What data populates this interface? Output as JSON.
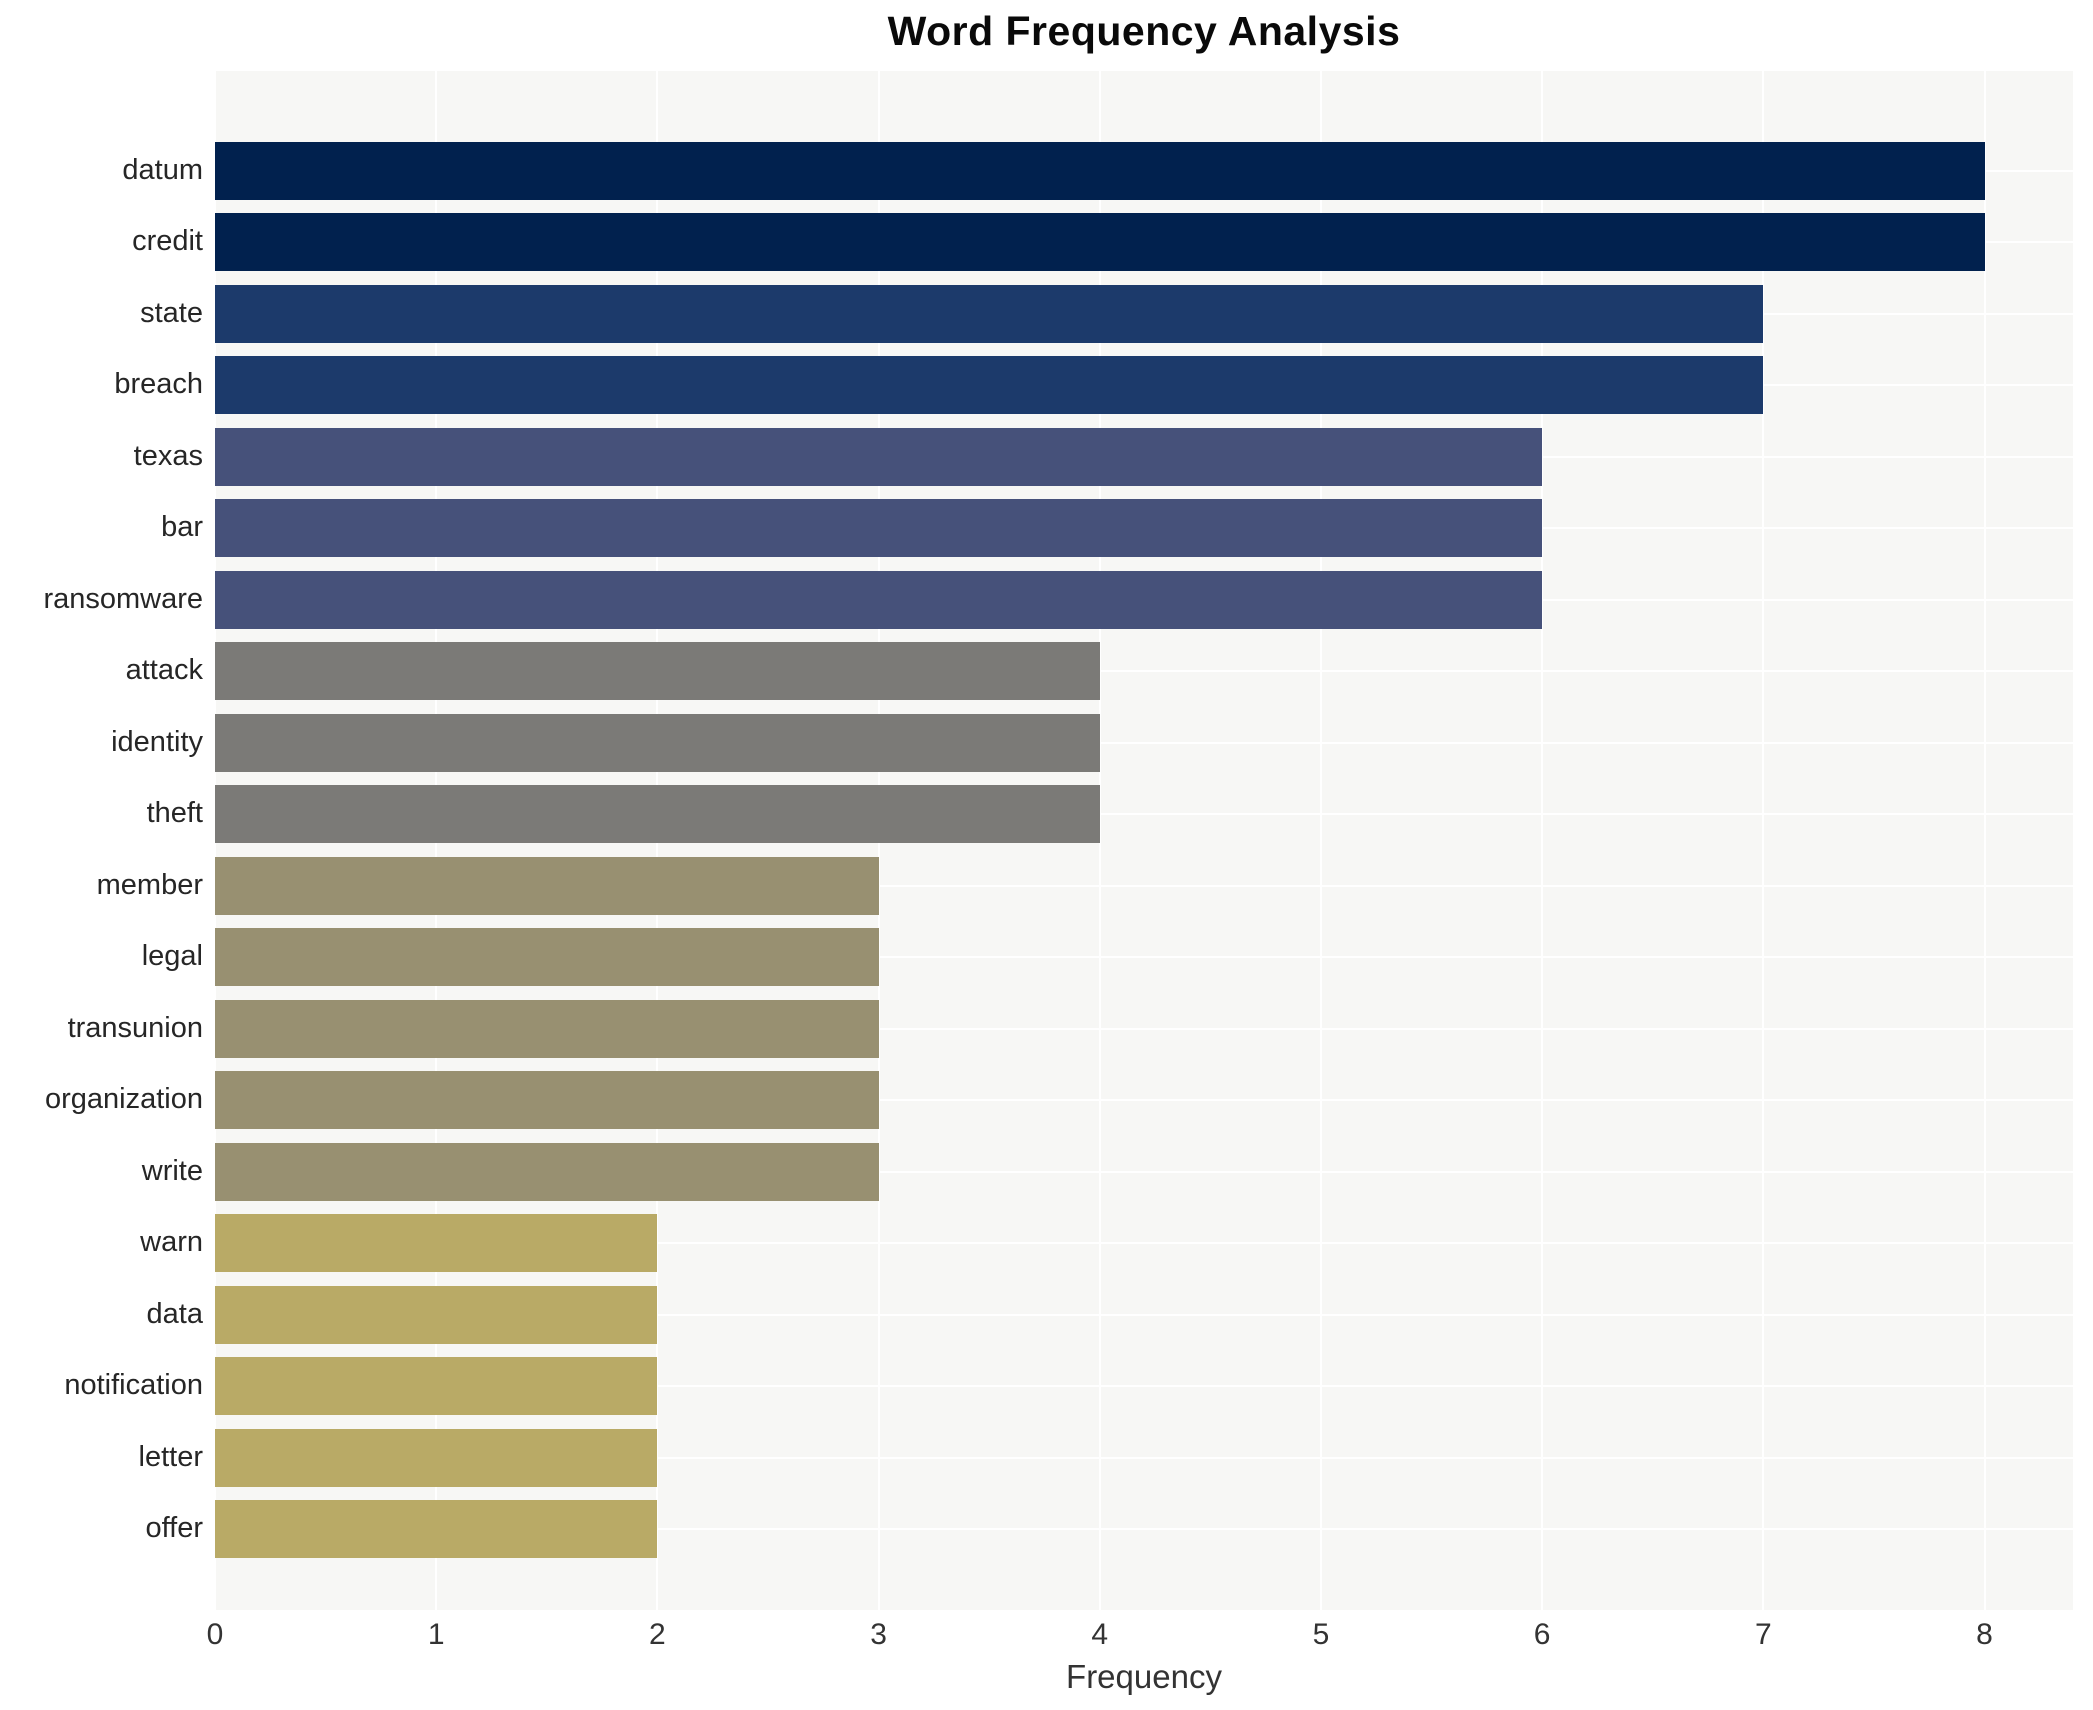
{
  "chart_data": {
    "type": "bar",
    "orientation": "horizontal",
    "title": "Word Frequency Analysis",
    "xlabel": "Frequency",
    "ylabel": "",
    "xlim": [
      0,
      8.4
    ],
    "x_ticks": [
      0,
      1,
      2,
      3,
      4,
      5,
      6,
      7,
      8
    ],
    "grid": true,
    "legend": "none",
    "plot_background": "#f7f7f5",
    "gridline_color": "#ffffff",
    "categories": [
      "datum",
      "credit",
      "state",
      "breach",
      "texas",
      "bar",
      "ransomware",
      "attack",
      "identity",
      "theft",
      "member",
      "legal",
      "transunion",
      "organization",
      "write",
      "warn",
      "data",
      "notification",
      "letter",
      "offer"
    ],
    "values": [
      8,
      8,
      7,
      7,
      6,
      6,
      6,
      4,
      4,
      4,
      3,
      3,
      3,
      3,
      3,
      2,
      2,
      2,
      2,
      2
    ],
    "bar_colors": [
      "#01214e",
      "#01214e",
      "#1c3a6b",
      "#1c3a6b",
      "#46517a",
      "#46517a",
      "#46517a",
      "#7b7a77",
      "#7b7a77",
      "#7b7a77",
      "#989071",
      "#989071",
      "#989071",
      "#989071",
      "#989071",
      "#b9aa66",
      "#b9aa66",
      "#b9aa66",
      "#b9aa66",
      "#b9aa66"
    ],
    "value_color_map": {
      "8": "#01214e",
      "7": "#1c3a6b",
      "6": "#46517a",
      "4": "#7b7a77",
      "3": "#989071",
      "2": "#b9aa66"
    }
  }
}
